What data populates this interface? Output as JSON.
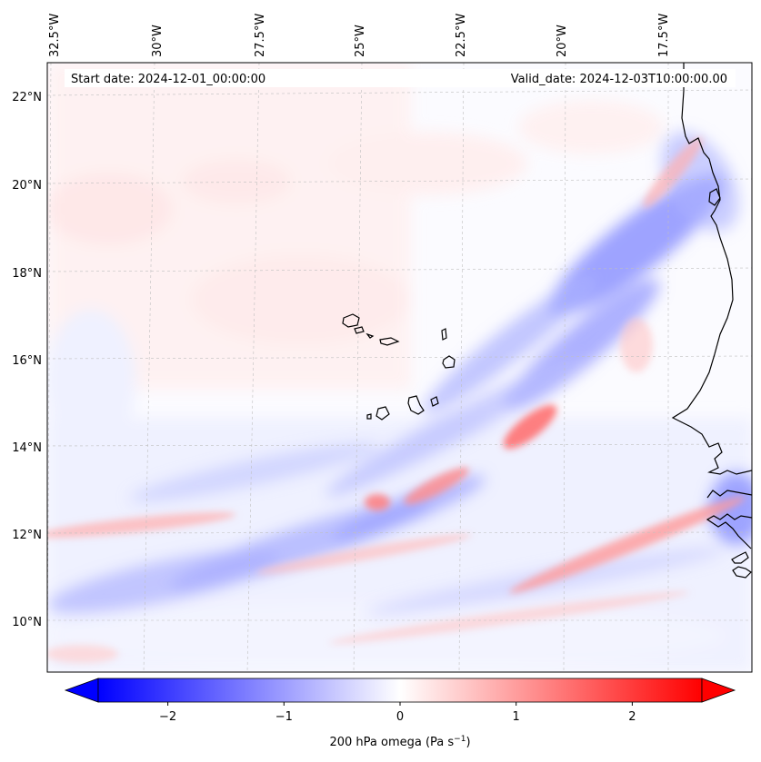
{
  "map": {
    "start_date": "Start date: 2024-12-01_00:00:00",
    "valid_date": "Valid_date: 2024-12-03T10:00:00.00",
    "lon_labels": [
      "32.5°W",
      "30°W",
      "27.5°W",
      "25°W",
      "22.5°W",
      "20°W",
      "17.5°W"
    ],
    "lat_labels": [
      "22°N",
      "20°N",
      "18°N",
      "16°N",
      "14°N",
      "12°N",
      "10°N"
    ]
  },
  "colorbar": {
    "label_prefix": "200 hPa omega (Pa s",
    "label_exp": "−1",
    "label_suffix": ")",
    "ticks": [
      "−2",
      "−1",
      "0",
      "1",
      "2"
    ],
    "min": -2.6,
    "max": 2.6,
    "colors": {
      "negative": "#0000ff",
      "zero": "#ffffff",
      "positive": "#ff0000"
    }
  }
}
